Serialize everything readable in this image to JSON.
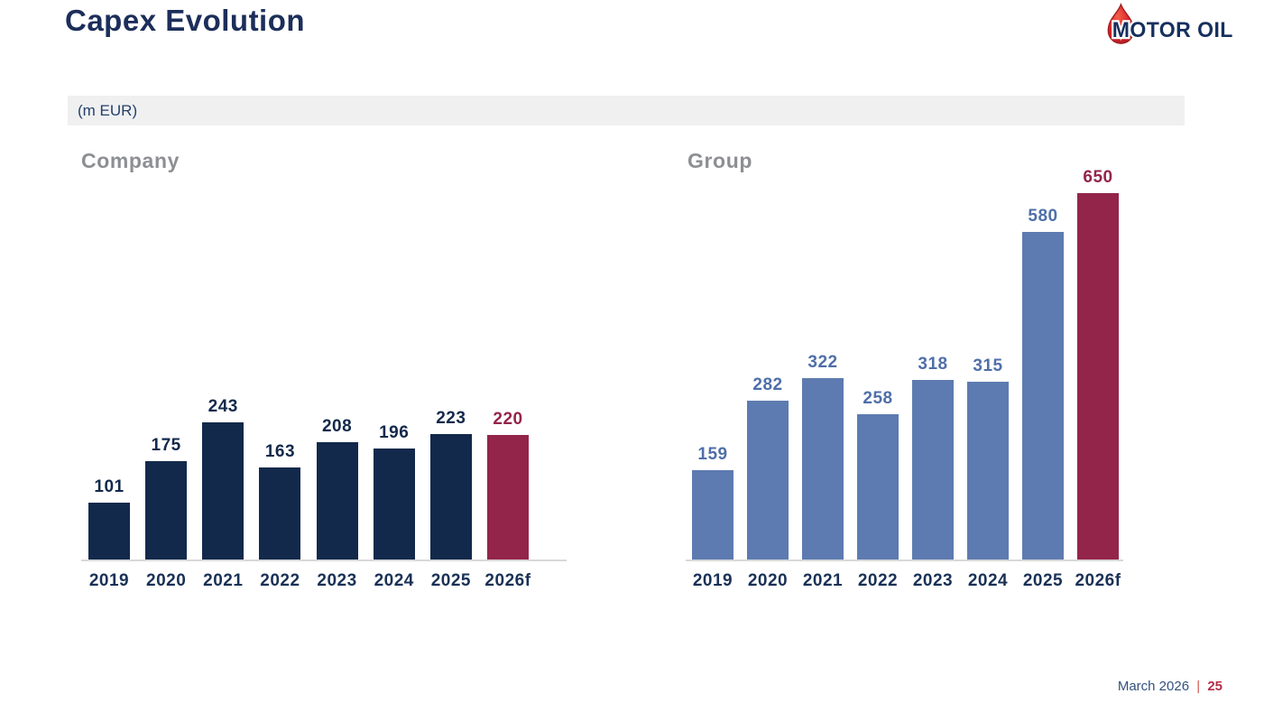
{
  "slide": {
    "title": "Capex Evolution",
    "unit_label": "(m EUR)",
    "footer": {
      "date": "March 2026",
      "separator": "|",
      "page": "25"
    }
  },
  "logo": {
    "brand": "MOTOR OIL",
    "droplet_color": "#d42027",
    "droplet_edge_color": "#9e1b20",
    "text_color": "#16305e"
  },
  "palette": {
    "title_navy": "#1c2e5a",
    "bar_navy": "#12294b",
    "steel_blue": "#5d7bb0",
    "maroon_highlight": "#93254a",
    "axis_gray": "#d8d8d8",
    "heading_gray": "#8d8f93",
    "band_gray": "#f0f0f1"
  },
  "chart_data": [
    {
      "type": "bar",
      "title": "Company",
      "categories": [
        "2019",
        "2020",
        "2021",
        "2022",
        "2023",
        "2024",
        "2025",
        "2026f"
      ],
      "values": [
        101,
        175,
        243,
        163,
        208,
        196,
        223,
        220
      ],
      "unit": "m EUR",
      "bar_color": "#12294b",
      "value_label_color": "#12294b",
      "highlight_index": 7,
      "highlight_bar_color": "#93254a",
      "highlight_value_color": "#93254a",
      "xlabel": "",
      "ylabel": "",
      "ylim": [
        0,
        680
      ],
      "grid": false,
      "legend": "none",
      "value_labels_position": "above bars"
    },
    {
      "type": "bar",
      "title": "Group",
      "categories": [
        "2019",
        "2020",
        "2021",
        "2022",
        "2023",
        "2024",
        "2025",
        "2026f"
      ],
      "values": [
        159,
        282,
        322,
        258,
        318,
        315,
        580,
        650
      ],
      "unit": "m EUR",
      "bar_color": "#5d7bb0",
      "value_label_color": "#4f6fa8",
      "highlight_index": 7,
      "highlight_bar_color": "#93254a",
      "highlight_value_color": "#93254a",
      "xlabel": "",
      "ylabel": "",
      "ylim": [
        0,
        680
      ],
      "grid": false,
      "legend": "none",
      "value_labels_position": "above bars"
    }
  ]
}
